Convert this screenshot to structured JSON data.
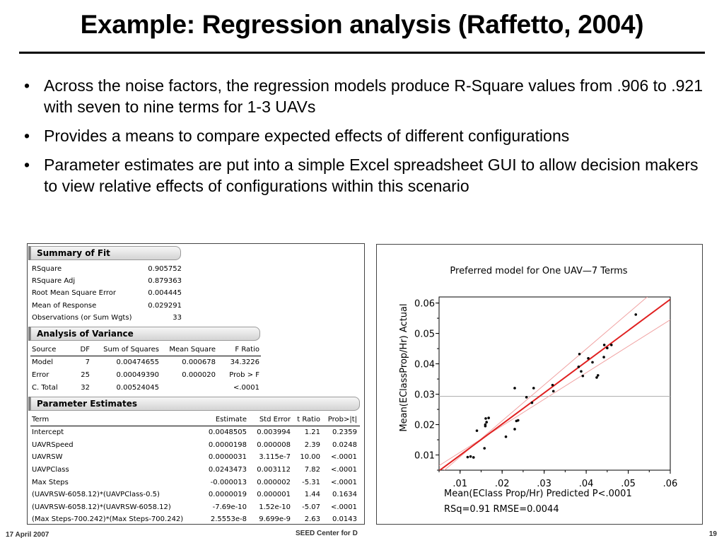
{
  "slide": {
    "title": "Example: Regression analysis (Raffetto, 2004)",
    "bullets": [
      "Across the noise factors, the regression models produce R-Square values from .906 to .921 with seven to nine terms for 1-3 UAVs",
      "Provides a means to compare expected effects of different configurations",
      "Parameter estimates are put into a simple Excel spreadsheet GUI to allow decision makers to view relative effects of configurations within this scenario"
    ],
    "footer_date": "17 April 2007",
    "footer_center": "SEED Center for D",
    "page_number": "19"
  },
  "summary_of_fit": {
    "title": "Summary of Fit",
    "rows": [
      {
        "label": "RSquare",
        "value": "0.905752"
      },
      {
        "label": "RSquare Adj",
        "value": "0.879363"
      },
      {
        "label": "Root Mean Square Error",
        "value": "0.004445"
      },
      {
        "label": "Mean of Response",
        "value": "0.029291"
      },
      {
        "label": "Observations (or Sum Wgts)",
        "value": "33"
      }
    ]
  },
  "analysis_of_variance": {
    "title": "Analysis of Variance",
    "headers": [
      "Source",
      "DF",
      "Sum of Squares",
      "Mean Square",
      "F Ratio"
    ],
    "rows": [
      [
        "Model",
        "7",
        "0.00474655",
        "0.000678",
        "34.3226"
      ],
      [
        "Error",
        "25",
        "0.00049390",
        "0.000020",
        "Prob > F"
      ],
      [
        "C. Total",
        "32",
        "0.00524045",
        "",
        "<.0001"
      ]
    ]
  },
  "parameter_estimates": {
    "title": "Parameter Estimates",
    "headers": [
      "Term",
      "Estimate",
      "Std Error",
      "t Ratio",
      "Prob>|t|"
    ],
    "rows": [
      [
        "Intercept",
        "0.0048505",
        "0.003994",
        "1.21",
        "0.2359"
      ],
      [
        "UAVRSpeed",
        "0.0000198",
        "0.000008",
        "2.39",
        "0.0248"
      ],
      [
        "UAVRSW",
        "0.0000031",
        "3.115e-7",
        "10.00",
        "<.0001"
      ],
      [
        "UAVPClass",
        "0.0243473",
        "0.003112",
        "7.82",
        "<.0001"
      ],
      [
        "Max Steps",
        "-0.000013",
        "0.000002",
        "-5.31",
        "<.0001"
      ],
      [
        "(UAVRSW-6058.12)*(UAVPClass-0.5)",
        "0.0000019",
        "0.000001",
        "1.44",
        "0.1634"
      ],
      [
        "(UAVRSW-6058.12)*(UAVRSW-6058.12)",
        "-7.69e-10",
        "1.52e-10",
        "-5.07",
        "<.0001"
      ],
      [
        "(Max Steps-700.242)*(Max Steps-700.242)",
        "2.5553e-8",
        "9.699e-9",
        "2.63",
        "0.0143"
      ]
    ]
  },
  "chart_data": {
    "type": "scatter",
    "title": "Preferred model for One UAV—7 Terms",
    "xlabel": "Mean(EClass Prop/Hr) Predicted P<.0001",
    "xlabel2": "RSq=0.91 RMSE=0.0044",
    "ylabel": "Mean(EClassProp/Hr) Actual",
    "xlim": [
      0.005,
      0.06
    ],
    "ylim": [
      0.005,
      0.062
    ],
    "x_ticks": [
      ".01",
      ".02",
      ".03",
      ".04",
      ".05",
      ".06"
    ],
    "y_ticks": [
      "0.01",
      "0.02",
      "0.03",
      "0.04",
      "0.05",
      "0.06"
    ],
    "mean_line_y": 0.0293,
    "fit_line_color": "#e02020",
    "confidence_color": "#f0a0a0",
    "points": [
      {
        "x": 0.0118,
        "y": 0.0093
      },
      {
        "x": 0.0125,
        "y": 0.0095
      },
      {
        "x": 0.0132,
        "y": 0.0092
      },
      {
        "x": 0.014,
        "y": 0.018
      },
      {
        "x": 0.0158,
        "y": 0.0122
      },
      {
        "x": 0.016,
        "y": 0.0195
      },
      {
        "x": 0.0163,
        "y": 0.0208
      },
      {
        "x": 0.0161,
        "y": 0.022
      },
      {
        "x": 0.0168,
        "y": 0.0222
      },
      {
        "x": 0.0209,
        "y": 0.016
      },
      {
        "x": 0.023,
        "y": 0.0185
      },
      {
        "x": 0.0234,
        "y": 0.0212
      },
      {
        "x": 0.0238,
        "y": 0.0214
      },
      {
        "x": 0.023,
        "y": 0.032
      },
      {
        "x": 0.0258,
        "y": 0.029
      },
      {
        "x": 0.0271,
        "y": 0.0272
      },
      {
        "x": 0.0275,
        "y": 0.032
      },
      {
        "x": 0.032,
        "y": 0.033
      },
      {
        "x": 0.0322,
        "y": 0.031
      },
      {
        "x": 0.0382,
        "y": 0.039
      },
      {
        "x": 0.0384,
        "y": 0.0432
      },
      {
        "x": 0.0388,
        "y": 0.0375
      },
      {
        "x": 0.0392,
        "y": 0.036
      },
      {
        "x": 0.0405,
        "y": 0.0418
      },
      {
        "x": 0.0415,
        "y": 0.0405
      },
      {
        "x": 0.0425,
        "y": 0.0355
      },
      {
        "x": 0.0428,
        "y": 0.0362
      },
      {
        "x": 0.0442,
        "y": 0.0422
      },
      {
        "x": 0.0443,
        "y": 0.0462
      },
      {
        "x": 0.045,
        "y": 0.0452
      },
      {
        "x": 0.046,
        "y": 0.0462
      },
      {
        "x": 0.0518,
        "y": 0.0562
      },
      {
        "x": 0.016,
        "y": 0.02
      }
    ]
  }
}
